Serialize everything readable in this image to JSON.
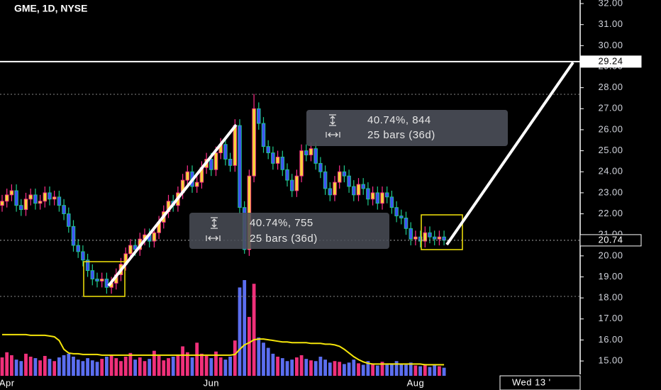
{
  "chart_data": {
    "type": "candlestick",
    "title": "GME, 1D, NYSE",
    "categories": [
      null,
      "Apr",
      null,
      null,
      null,
      null,
      null,
      null,
      null,
      null,
      null,
      null,
      null,
      null,
      null,
      null,
      null,
      null,
      null,
      null,
      null,
      null,
      null,
      null,
      null,
      null,
      null,
      null,
      null,
      null,
      null,
      null,
      null,
      null,
      null,
      null,
      null,
      null,
      null,
      null,
      null,
      null,
      null,
      null,
      "Jun",
      null,
      null,
      null,
      null,
      null,
      null,
      null,
      null,
      null,
      null,
      null,
      null,
      null,
      null,
      null,
      null,
      null,
      null,
      null,
      null,
      null,
      null,
      null,
      null,
      null,
      null,
      null,
      null,
      null,
      null,
      null,
      null,
      null,
      null,
      null,
      null,
      null,
      null,
      null,
      null,
      null,
      null,
      "Aug",
      null,
      null,
      null,
      null,
      null,
      null
    ],
    "open": [
      22.4,
      22.6,
      22.9,
      23.1,
      22.4,
      22.2,
      22.7,
      22.9,
      22.5,
      22.6,
      23.0,
      22.7,
      22.8,
      22.4,
      22.0,
      21.4,
      20.5,
      20.2,
      19.8,
      19.3,
      18.9,
      18.8,
      18.9,
      18.5,
      18.7,
      19.1,
      19.6,
      20.1,
      20.5,
      20.3,
      20.8,
      21.0,
      20.7,
      21.1,
      21.6,
      22.1,
      22.6,
      22.4,
      23.0,
      23.6,
      24.0,
      23.3,
      23.5,
      24.2,
      24.6,
      24.1,
      24.9,
      25.3,
      24.6,
      24.3,
      26.2,
      22.3,
      20.3,
      23.8,
      27.0,
      26.3,
      25.2,
      24.9,
      24.4,
      24.7,
      24.1,
      23.6,
      23.1,
      23.8,
      25.0,
      24.8,
      25.1,
      24.4,
      24.0,
      23.2,
      22.9,
      23.5,
      24.0,
      23.8,
      23.3,
      22.9,
      23.4,
      23.2,
      22.7,
      23.0,
      22.5,
      23.0,
      22.8,
      22.3,
      21.9,
      21.8,
      21.3,
      20.8,
      20.9,
      20.7,
      21.1,
      20.9,
      20.8,
      20.9
    ],
    "high": [
      22.9,
      23.2,
      23.4,
      23.4,
      22.7,
      23.0,
      23.2,
      23.2,
      22.9,
      23.3,
      23.3,
      23.1,
      23.1,
      22.7,
      22.3,
      21.7,
      20.8,
      20.5,
      20.1,
      19.6,
      19.2,
      19.2,
      19.2,
      19.0,
      19.4,
      19.9,
      20.4,
      20.8,
      20.8,
      21.1,
      21.3,
      21.3,
      21.4,
      21.9,
      22.4,
      22.9,
      22.9,
      23.3,
      23.9,
      24.3,
      24.3,
      23.8,
      24.5,
      24.9,
      24.9,
      25.2,
      25.6,
      25.6,
      24.9,
      26.5,
      26.5,
      22.6,
      24.1,
      27.7,
      27.3,
      26.6,
      25.5,
      25.2,
      25.0,
      25.0,
      24.4,
      23.9,
      24.1,
      25.3,
      25.3,
      25.4,
      25.4,
      24.7,
      24.3,
      23.5,
      23.8,
      24.3,
      24.3,
      24.1,
      23.6,
      23.7,
      23.7,
      23.5,
      23.3,
      23.3,
      23.3,
      23.3,
      23.1,
      22.6,
      22.2,
      22.1,
      21.6,
      21.2,
      21.2,
      21.4,
      21.4,
      21.2,
      21.2,
      21.2
    ],
    "low": [
      22.1,
      22.3,
      22.6,
      22.1,
      21.9,
      21.9,
      22.4,
      22.2,
      22.2,
      22.3,
      22.4,
      22.4,
      22.1,
      21.7,
      21.1,
      20.2,
      19.9,
      19.5,
      19.0,
      18.6,
      18.5,
      18.5,
      18.2,
      18.2,
      18.4,
      18.8,
      19.3,
      19.8,
      20.0,
      20.0,
      20.5,
      20.4,
      20.4,
      20.8,
      21.3,
      21.8,
      22.1,
      22.1,
      22.7,
      23.3,
      23.0,
      23.0,
      23.2,
      23.9,
      23.8,
      23.8,
      24.6,
      24.3,
      24.0,
      24.0,
      22.0,
      20.1,
      20.0,
      23.5,
      26.0,
      24.9,
      24.6,
      24.1,
      24.1,
      23.8,
      23.3,
      22.8,
      22.8,
      23.5,
      24.5,
      24.5,
      24.1,
      23.7,
      22.9,
      22.6,
      22.6,
      23.2,
      23.5,
      23.0,
      22.6,
      22.6,
      22.9,
      22.4,
      22.4,
      22.2,
      22.2,
      22.5,
      22.0,
      21.6,
      21.5,
      21.0,
      20.5,
      20.5,
      20.4,
      20.4,
      20.6,
      20.5,
      20.5,
      20.5
    ],
    "close": [
      22.6,
      22.9,
      23.1,
      22.4,
      22.2,
      22.7,
      22.9,
      22.5,
      22.6,
      23.0,
      22.7,
      22.8,
      22.4,
      22.0,
      21.4,
      20.5,
      20.2,
      19.8,
      19.3,
      18.9,
      18.8,
      18.9,
      18.5,
      18.7,
      19.1,
      19.6,
      20.1,
      20.5,
      20.3,
      20.8,
      21.0,
      20.7,
      21.1,
      21.6,
      22.1,
      22.6,
      22.4,
      23.0,
      23.6,
      24.0,
      23.3,
      23.5,
      24.2,
      24.6,
      24.1,
      24.9,
      25.3,
      24.6,
      24.3,
      26.2,
      22.3,
      20.3,
      23.8,
      27.0,
      26.3,
      25.2,
      24.9,
      24.4,
      24.7,
      24.1,
      23.6,
      23.1,
      23.8,
      25.0,
      24.8,
      25.1,
      24.4,
      24.0,
      23.2,
      22.9,
      23.5,
      24.0,
      23.8,
      23.3,
      22.9,
      23.4,
      23.2,
      22.7,
      23.0,
      22.5,
      23.0,
      22.8,
      22.3,
      21.9,
      21.8,
      21.3,
      20.8,
      20.9,
      20.7,
      21.1,
      20.9,
      20.8,
      20.9,
      20.74
    ],
    "volume": [
      2.5,
      3.2,
      2.8,
      2.2,
      2.0,
      3.0,
      2.6,
      2.4,
      2.1,
      2.7,
      2.3,
      2.0,
      2.5,
      2.8,
      3.0,
      2.6,
      2.2,
      2.0,
      2.4,
      2.1,
      1.9,
      2.3,
      2.6,
      2.8,
      2.4,
      2.0,
      2.6,
      3.1,
      2.2,
      2.5,
      2.0,
      2.3,
      3.4,
      2.7,
      2.1,
      2.4,
      2.6,
      2.9,
      4.0,
      3.2,
      2.5,
      4.5,
      3.0,
      2.7,
      2.4,
      3.3,
      2.5,
      2.2,
      2.6,
      4.8,
      12.0,
      13.0,
      8.0,
      12.5,
      5.2,
      4.5,
      3.8,
      3.0,
      2.6,
      2.4,
      2.0,
      2.2,
      2.5,
      2.8,
      2.3,
      2.1,
      2.0,
      2.6,
      2.2,
      1.8,
      2.0,
      1.9,
      1.6,
      1.8,
      2.2,
      1.7,
      1.5,
      2.0,
      1.6,
      1.4,
      1.9,
      1.5,
      1.7,
      2.0,
      1.6,
      1.5,
      1.8,
      1.4,
      1.3,
      1.6,
      1.2,
      1.5,
      1.3,
      1.1
    ],
    "volume_ma": [
      5.6,
      5.6,
      5.6,
      5.6,
      5.6,
      5.6,
      5.5,
      5.5,
      5.5,
      5.5,
      5.4,
      5.3,
      4.8,
      3.6,
      3.1,
      3.0,
      3.0,
      2.9,
      2.9,
      2.9,
      2.9,
      2.8,
      2.8,
      2.8,
      2.8,
      2.8,
      2.8,
      2.8,
      2.8,
      2.8,
      2.8,
      2.8,
      2.8,
      2.8,
      2.8,
      2.8,
      2.8,
      2.8,
      2.8,
      2.8,
      2.8,
      2.8,
      2.8,
      2.8,
      2.8,
      2.8,
      2.8,
      2.8,
      2.8,
      2.9,
      3.6,
      4.2,
      4.5,
      4.9,
      5.0,
      5.0,
      4.9,
      4.8,
      4.7,
      4.6,
      4.6,
      4.5,
      4.5,
      4.5,
      4.5,
      4.4,
      4.4,
      4.4,
      4.3,
      4.3,
      4.2,
      4.0,
      3.6,
      3.1,
      2.6,
      2.2,
      1.9,
      1.7,
      1.6,
      1.6,
      1.6,
      1.6,
      1.6,
      1.6,
      1.6,
      1.6,
      1.6,
      1.6,
      1.6,
      1.5,
      1.5,
      1.5,
      1.5,
      1.5
    ],
    "up_color": "#f5d33a",
    "up_border": "#ff2d8a",
    "down_color": "#3f51f5",
    "down_border": "#1ec98b",
    "volume_up_color": "#f0307a",
    "volume_down_color": "#5b6ef0",
    "ma_color": "#f5e50a",
    "ylim": [
      13.62,
      32.17
    ],
    "yticks": [
      {
        "value": 15,
        "label": "15.00"
      },
      {
        "value": 16,
        "label": "16.00"
      },
      {
        "value": 17,
        "label": "17.00"
      },
      {
        "value": 18,
        "label": "18.00"
      },
      {
        "value": 19,
        "label": "19.00"
      },
      {
        "value": 20,
        "label": "20.00"
      },
      {
        "value": 21,
        "label": "21.00"
      },
      {
        "value": 22,
        "label": "22.00"
      },
      {
        "value": 23,
        "label": "23.00"
      },
      {
        "value": 24,
        "label": "24.00"
      },
      {
        "value": 25,
        "label": "25.00"
      },
      {
        "value": 26,
        "label": "26.00"
      },
      {
        "value": 27,
        "label": "27.00"
      },
      {
        "value": 28,
        "label": "28.00"
      },
      {
        "value": 29,
        "label": "29.00"
      },
      {
        "value": 30,
        "label": "30.00"
      },
      {
        "value": 31,
        "label": "31.00"
      },
      {
        "value": 32,
        "label": "32.00"
      }
    ],
    "grid": false,
    "price_markers": [
      29.24,
      20.74
    ],
    "annotations": [
      {
        "lines": [
          "40.74%, 844",
          "25 bars (36d)"
        ]
      },
      {
        "lines": [
          "40.74%, 755",
          "25 bars (36d)"
        ]
      }
    ],
    "crosshair_label": "Wed 13 '"
  }
}
